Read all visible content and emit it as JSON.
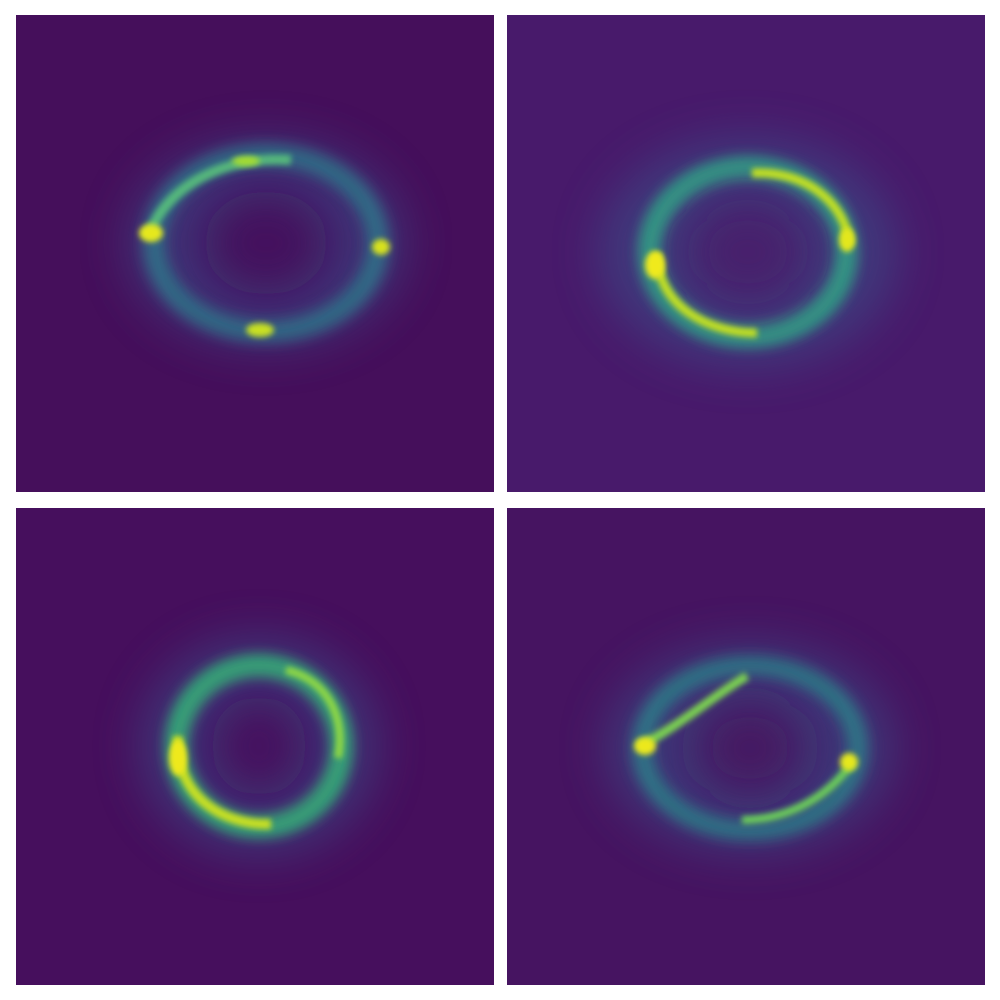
{
  "figure": {
    "colors": {
      "background": "#ffffff",
      "colormap_low": "#440f5a",
      "colormap_mid": "#21908d",
      "colormap_high": "#e6e81f"
    },
    "panels": [
      {
        "id": "top-left-lens",
        "description_key": "ring-with-four-bright-spots"
      },
      {
        "id": "top-right-lens",
        "description_key": "bright-elliptical-ring"
      },
      {
        "id": "bottom-left-lens",
        "description_key": "near-circular-ring"
      },
      {
        "id": "bottom-right-lens",
        "description_key": "ring-with-two-arcs"
      }
    ]
  }
}
